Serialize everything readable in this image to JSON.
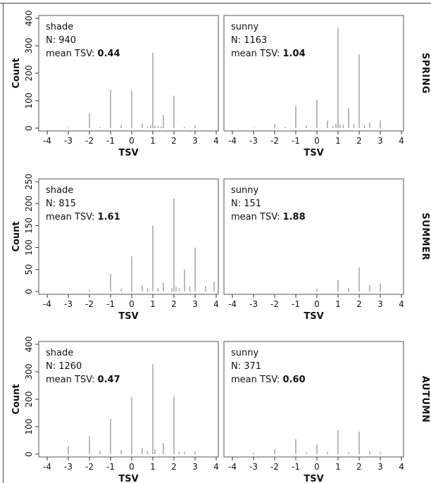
{
  "chart_data": [
    {
      "type": "bar",
      "season": "SPRING",
      "group": "shade",
      "n_label": "N: 940",
      "mean_prefix": "mean TSV: ",
      "mean_value": "0.44",
      "xlabel": "TSV",
      "ylabel": "Count",
      "xlim": [
        -4.4,
        4.1
      ],
      "xticks": [
        -4,
        -3,
        -2,
        -1,
        0,
        1,
        2,
        3,
        4
      ],
      "ylim": [
        0,
        400
      ],
      "yticks": [
        0,
        100,
        200,
        300,
        400
      ],
      "x": [
        -3,
        -2,
        -1.5,
        -1,
        -0.5,
        0,
        0.5,
        0.75,
        0.9,
        1,
        1.1,
        1.25,
        1.4,
        1.5,
        2,
        2.5,
        3
      ],
      "values": [
        2,
        55,
        4,
        140,
        12,
        138,
        18,
        6,
        10,
        275,
        10,
        8,
        6,
        48,
        118,
        4,
        10
      ]
    },
    {
      "type": "bar",
      "season": "SPRING",
      "group": "sunny",
      "n_label": "N: 1163",
      "mean_prefix": "mean TSV: ",
      "mean_value": "1.04",
      "xlabel": "TSV",
      "ylabel": "",
      "xlim": [
        -4.4,
        4.1
      ],
      "xticks": [
        -4,
        -3,
        -2,
        -1,
        0,
        1,
        2,
        3,
        4
      ],
      "ylim": [
        0,
        400
      ],
      "yticks": [
        0,
        100,
        200,
        300,
        400
      ],
      "x": [
        -3,
        -2,
        -1.5,
        -1,
        -0.5,
        0,
        0.5,
        0.75,
        0.9,
        1,
        1.1,
        1.25,
        1.5,
        1.75,
        2,
        2.25,
        2.5,
        3
      ],
      "values": [
        2,
        15,
        4,
        82,
        10,
        103,
        28,
        8,
        15,
        365,
        14,
        12,
        72,
        14,
        268,
        10,
        20,
        28
      ]
    },
    {
      "type": "bar",
      "season": "SUMMER",
      "group": "shade",
      "n_label": "N: 815",
      "mean_prefix": "mean TSV: ",
      "mean_value": "1.61",
      "xlabel": "TSV",
      "ylabel": "Count",
      "xlim": [
        -4.4,
        4.1
      ],
      "xticks": [
        -4,
        -3,
        -2,
        -1,
        0,
        1,
        2,
        3,
        4
      ],
      "ylim": [
        0,
        250
      ],
      "yticks": [
        0,
        50,
        100,
        150,
        200,
        250
      ],
      "x": [
        -2,
        -1,
        -0.5,
        0,
        0.5,
        0.75,
        1,
        1.25,
        1.5,
        1.9,
        2,
        2.1,
        2.25,
        2.5,
        2.75,
        3,
        3.5,
        3.9
      ],
      "values": [
        4,
        40,
        6,
        80,
        14,
        8,
        150,
        8,
        20,
        8,
        212,
        10,
        8,
        50,
        12,
        100,
        12,
        22
      ]
    },
    {
      "type": "bar",
      "season": "SUMMER",
      "group": "sunny",
      "n_label": "N: 151",
      "mean_prefix": "mean TSV: ",
      "mean_value": "1.88",
      "xlabel": "TSV",
      "ylabel": "",
      "xlim": [
        -4.4,
        4.1
      ],
      "xticks": [
        -4,
        -3,
        -2,
        -1,
        0,
        1,
        2,
        3,
        4
      ],
      "ylim": [
        0,
        250
      ],
      "yticks": [
        0,
        50,
        100,
        150,
        200,
        250
      ],
      "x": [
        0,
        1,
        1.5,
        2,
        2.5,
        3
      ],
      "values": [
        6,
        26,
        8,
        55,
        15,
        18
      ]
    },
    {
      "type": "bar",
      "season": "AUTUMN",
      "group": "shade",
      "n_label": "N: 1260",
      "mean_prefix": "mean TSV: ",
      "mean_value": "0.47",
      "xlabel": "TSV",
      "ylabel": "Count",
      "xlim": [
        -4.4,
        4.1
      ],
      "xticks": [
        -4,
        -3,
        -2,
        -1,
        0,
        1,
        2,
        3,
        4
      ],
      "ylim": [
        0,
        400
      ],
      "yticks": [
        0,
        100,
        200,
        300,
        400
      ],
      "x": [
        -3,
        -2,
        -1.5,
        -1,
        -0.5,
        0,
        0.5,
        0.75,
        1,
        1.1,
        1.5,
        2,
        2.25,
        2.5,
        3
      ],
      "values": [
        28,
        65,
        12,
        128,
        14,
        208,
        22,
        12,
        328,
        18,
        40,
        210,
        10,
        8,
        10
      ]
    },
    {
      "type": "bar",
      "season": "AUTUMN",
      "group": "sunny",
      "n_label": "N: 371",
      "mean_prefix": "mean TSV: ",
      "mean_value": "0.60",
      "xlabel": "TSV",
      "ylabel": "",
      "xlim": [
        -4.4,
        4.1
      ],
      "xticks": [
        -4,
        -3,
        -2,
        -1,
        0,
        1,
        2,
        3,
        4
      ],
      "ylim": [
        0,
        400
      ],
      "yticks": [
        0,
        100,
        200,
        300,
        400
      ],
      "x": [
        -3,
        -2,
        -1,
        -0.5,
        0,
        0.5,
        1,
        1.5,
        2,
        2.5,
        3
      ],
      "values": [
        4,
        18,
        55,
        6,
        35,
        8,
        88,
        6,
        82,
        10,
        6
      ]
    }
  ],
  "row_labels": [
    "SPRING",
    "SUMMER",
    "AUTUMN"
  ],
  "colors": {
    "bar": "#a9a9a9",
    "frame": "#555555"
  }
}
